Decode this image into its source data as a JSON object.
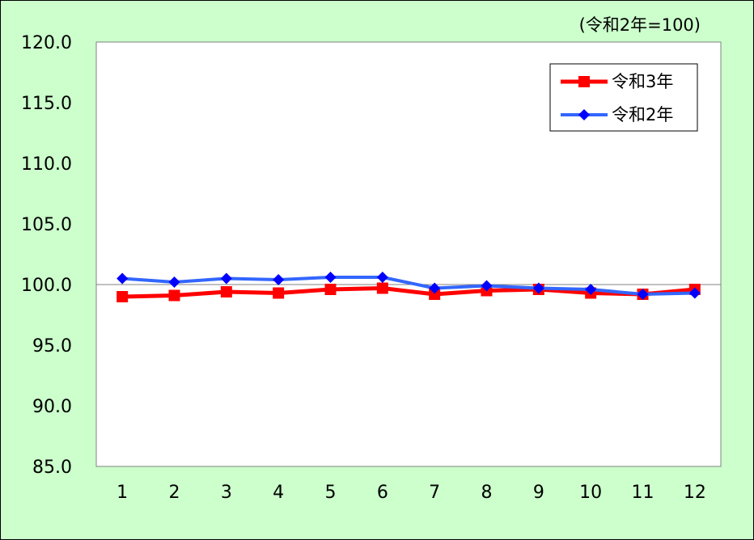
{
  "chart_data": {
    "type": "line",
    "unit_note": "(令和2年=100)",
    "categories": [
      "1",
      "2",
      "3",
      "4",
      "5",
      "6",
      "7",
      "8",
      "9",
      "10",
      "11",
      "12"
    ],
    "ylim": [
      85.0,
      120.0
    ],
    "yticks": [
      "85.0",
      "90.0",
      "95.0",
      "100.0",
      "105.0",
      "110.0",
      "115.0",
      "120.0"
    ],
    "reference_line": 100.0,
    "legend_position": "top-right",
    "series": [
      {
        "name": "令和3年",
        "color": "#FF0000",
        "marker": "square",
        "values": [
          99.0,
          99.1,
          99.4,
          99.3,
          99.6,
          99.7,
          99.2,
          99.5,
          99.6,
          99.3,
          99.2,
          99.6
        ]
      },
      {
        "name": "令和2年",
        "color": "#3366FF",
        "marker": "diamond",
        "values": [
          100.5,
          100.2,
          100.5,
          100.4,
          100.6,
          100.6,
          99.7,
          99.9,
          99.7,
          99.6,
          99.2,
          99.3
        ]
      }
    ]
  }
}
